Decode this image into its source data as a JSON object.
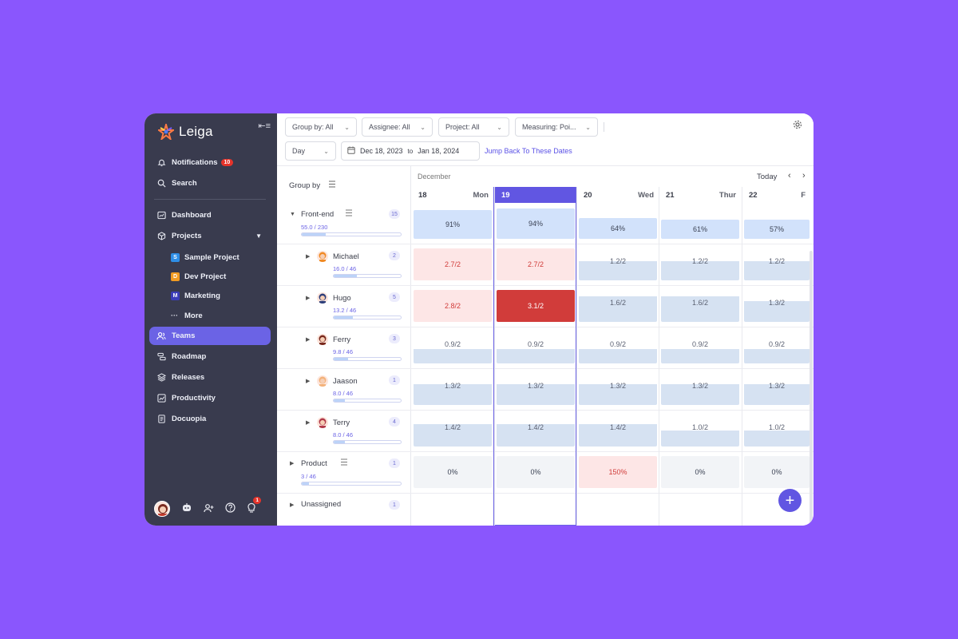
{
  "brand": {
    "name": "Leiga"
  },
  "sidebar": {
    "notifications": {
      "label": "Notifications",
      "count": "10"
    },
    "search": {
      "label": "Search"
    },
    "items": [
      {
        "label": "Dashboard"
      },
      {
        "label": "Projects"
      },
      {
        "label": "Teams"
      },
      {
        "label": "Roadmap"
      },
      {
        "label": "Releases"
      },
      {
        "label": "Productivity"
      },
      {
        "label": "Docuopia"
      }
    ],
    "projects": [
      {
        "letter": "S",
        "label": "Sample Project",
        "color": "#2e8ee6"
      },
      {
        "letter": "D",
        "label": "Dev Project",
        "color": "#f29b21"
      },
      {
        "letter": "M",
        "label": "Marketing",
        "color": "#3b3db8"
      }
    ],
    "more": "More",
    "bottom_badge": "1"
  },
  "filters": {
    "group_by": "Group by: All",
    "assignee": "Assignee: All",
    "project": "Project: All",
    "measuring": "Measuring: Poi..."
  },
  "view": {
    "scale": "Day",
    "date_from": "Dec 18, 2023",
    "date_to_word": "to",
    "date_to": "Jan 18, 2024",
    "jump": "Jump Back To These Dates"
  },
  "grid": {
    "group_by_label": "Group by",
    "month": "December",
    "today": "Today",
    "days": [
      {
        "num": "18",
        "wd": "Mon"
      },
      {
        "num": "19",
        "wd": ""
      },
      {
        "num": "20",
        "wd": "Wed"
      },
      {
        "num": "21",
        "wd": "Thur"
      },
      {
        "num": "22",
        "wd": "F"
      }
    ],
    "rows": [
      {
        "label": "Front-end",
        "count": "15",
        "cap": "55.0 / 230",
        "fill": 0.24,
        "values": [
          "91%",
          "94%",
          "64%",
          "61%",
          "57%"
        ]
      },
      {
        "label": "Michael",
        "count": "2",
        "cap": "16.0 / 46",
        "fill": 0.35,
        "values": [
          "2.7/2",
          "2.7/2",
          "1.2/2",
          "1.2/2",
          "1.2/2"
        ]
      },
      {
        "label": "Hugo",
        "count": "5",
        "cap": "13.2 / 46",
        "fill": 0.29,
        "values": [
          "2.8/2",
          "3.1/2",
          "1.6/2",
          "1.6/2",
          "1.3/2"
        ]
      },
      {
        "label": "Ferry",
        "count": "3",
        "cap": "9.8 / 46",
        "fill": 0.21,
        "values": [
          "0.9/2",
          "0.9/2",
          "0.9/2",
          "0.9/2",
          "0.9/2"
        ]
      },
      {
        "label": "Jaason",
        "count": "1",
        "cap": "8.0 / 46",
        "fill": 0.17,
        "values": [
          "1.3/2",
          "1.3/2",
          "1.3/2",
          "1.3/2",
          "1.3/2"
        ]
      },
      {
        "label": "Terry",
        "count": "4",
        "cap": "8.0 / 46",
        "fill": 0.17,
        "values": [
          "1.4/2",
          "1.4/2",
          "1.4/2",
          "1.0/2",
          "1.0/2"
        ]
      },
      {
        "label": "Product",
        "count": "1",
        "cap": "3 / 46",
        "fill": 0.07,
        "values": [
          "0%",
          "0%",
          "150%",
          "0%",
          "0%"
        ]
      },
      {
        "label": "Unassigned",
        "count": "1"
      }
    ]
  },
  "colors": {
    "accent": "#6156e2",
    "overload": "#d13c3a",
    "overload_light": "#fde6e6",
    "normal": "#d6e2f2"
  }
}
